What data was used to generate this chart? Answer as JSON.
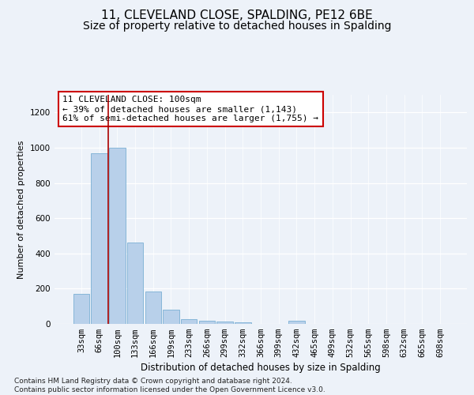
{
  "title1": "11, CLEVELAND CLOSE, SPALDING, PE12 6BE",
  "title2": "Size of property relative to detached houses in Spalding",
  "xlabel": "Distribution of detached houses by size in Spalding",
  "ylabel": "Number of detached properties",
  "categories": [
    "33sqm",
    "66sqm",
    "100sqm",
    "133sqm",
    "166sqm",
    "199sqm",
    "233sqm",
    "266sqm",
    "299sqm",
    "332sqm",
    "366sqm",
    "399sqm",
    "432sqm",
    "465sqm",
    "499sqm",
    "532sqm",
    "565sqm",
    "598sqm",
    "632sqm",
    "665sqm",
    "698sqm"
  ],
  "values": [
    170,
    968,
    998,
    462,
    185,
    82,
    26,
    18,
    13,
    9,
    0,
    0,
    18,
    0,
    0,
    0,
    0,
    0,
    0,
    0,
    0
  ],
  "bar_color": "#b8d0ea",
  "bar_edge_color": "#7aafd4",
  "vline_x": 1.5,
  "vline_color": "#aa0000",
  "annotation_text": "11 CLEVELAND CLOSE: 100sqm\n← 39% of detached houses are smaller (1,143)\n61% of semi-detached houses are larger (1,755) →",
  "annotation_box_color": "#ffffff",
  "annotation_box_edge": "#cc0000",
  "ylim": [
    0,
    1300
  ],
  "yticks": [
    0,
    200,
    400,
    600,
    800,
    1000,
    1200
  ],
  "footnote": "Contains HM Land Registry data © Crown copyright and database right 2024.\nContains public sector information licensed under the Open Government Licence v3.0.",
  "bg_color": "#edf2f9",
  "grid_color": "#ffffff",
  "title1_fontsize": 11,
  "title2_fontsize": 10,
  "xlabel_fontsize": 8.5,
  "ylabel_fontsize": 8,
  "tick_fontsize": 7.5,
  "annot_fontsize": 8,
  "footnote_fontsize": 6.5
}
